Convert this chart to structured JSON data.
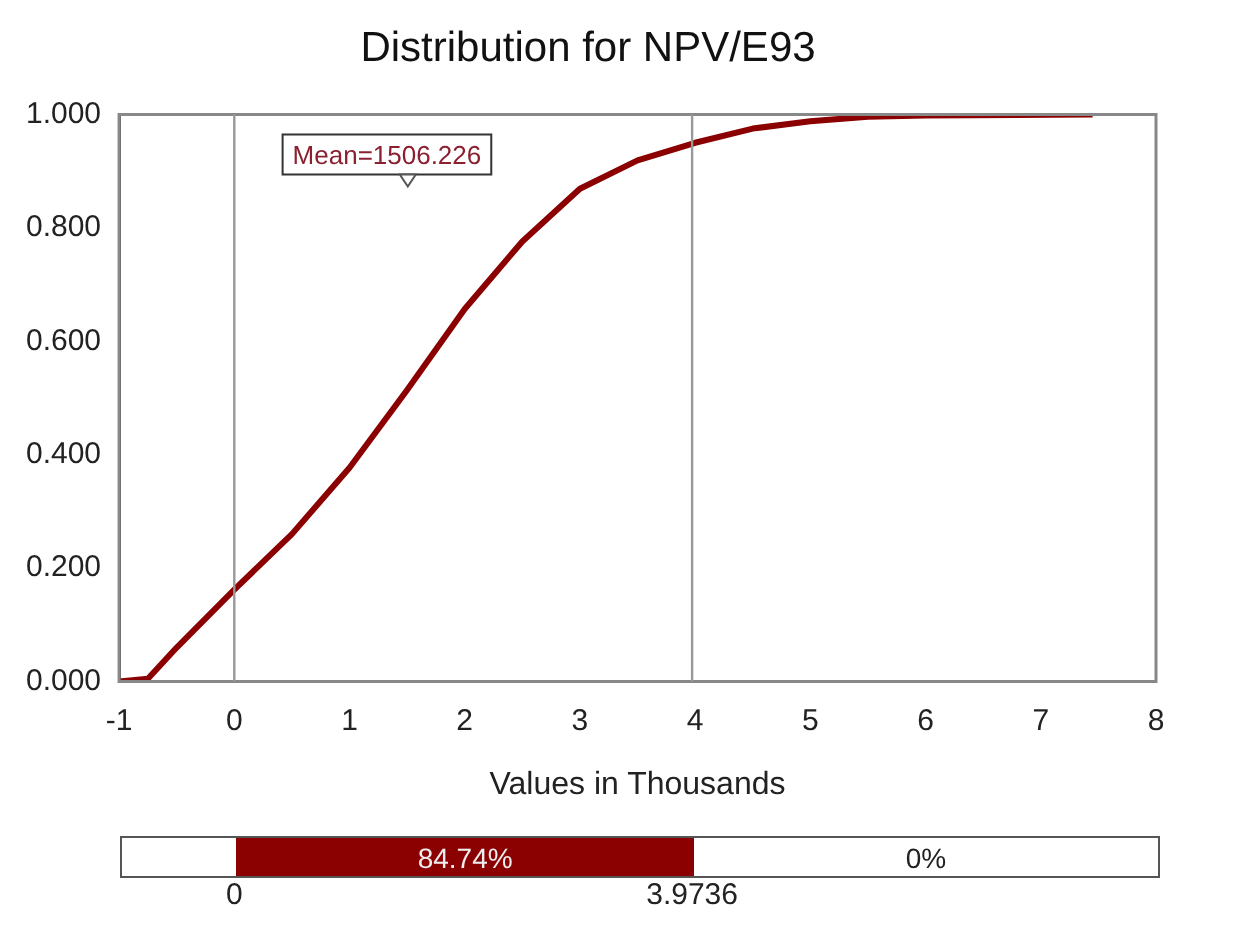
{
  "chart_data": {
    "type": "line",
    "title": "Distribution for NPV/E93",
    "xlabel": "Values in Thousands",
    "x": [
      -1,
      -0.75,
      -0.5,
      0,
      0.5,
      1,
      1.5,
      2,
      2.5,
      3,
      3.5,
      4,
      4.5,
      5,
      5.5,
      6,
      7.45
    ],
    "series": [
      {
        "color": "#8b0000",
        "values": [
          0,
          0.005,
          0.06,
          0.162,
          0.26,
          0.377,
          0.514,
          0.657,
          0.776,
          0.869,
          0.919,
          0.95,
          0.975,
          0.988,
          0.996,
          0.998,
          1.0
        ]
      }
    ],
    "xlim": [
      -1,
      8
    ],
    "xticks": [
      -1,
      0,
      1,
      2,
      3,
      4,
      5,
      6,
      7,
      8
    ],
    "ylim": [
      0,
      1
    ],
    "yticks": [
      {
        "value": 0,
        "label": "0.000"
      },
      {
        "value": 0.2,
        "label": "0.200"
      },
      {
        "value": 0.4,
        "label": "0.400"
      },
      {
        "value": 0.6,
        "label": "0.600"
      },
      {
        "value": 0.8,
        "label": "0.800"
      },
      {
        "value": 1,
        "label": "1.000"
      }
    ],
    "ref_lines": [
      {
        "axis": "x",
        "value": 0,
        "color": "#999999"
      },
      {
        "axis": "x",
        "value": 3.9736,
        "color": "#999999"
      }
    ],
    "annotations": [
      {
        "text": "Mean=1506.226",
        "x": 1.506,
        "y": 0.88
      },
      "84.74%",
      "0%",
      "0",
      "3.9736"
    ],
    "grid": false,
    "legend": false,
    "marker": "none",
    "line_style": "solid"
  }
}
